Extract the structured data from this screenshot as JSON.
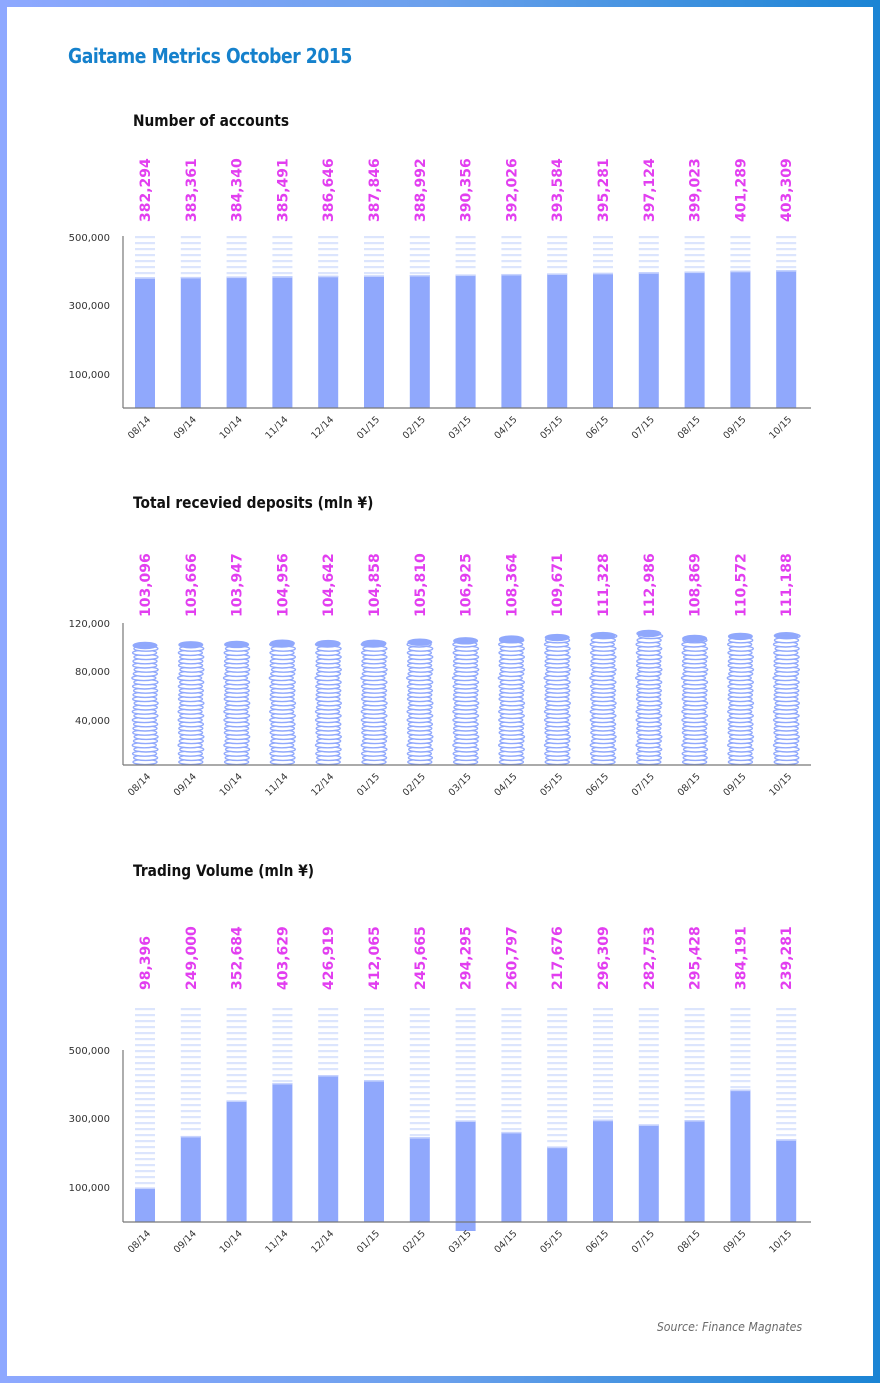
{
  "page": {
    "title": "Gaitame Metrics October 2015",
    "source": "Source: Finance Magnates",
    "colors": {
      "title": "#1581cc",
      "bar": "#90a8fc",
      "bar_ghost": "#dce5fd",
      "value_label": "#e23ef0",
      "axis": "#777777"
    }
  },
  "chart_data": [
    {
      "id": "accounts",
      "type": "bar",
      "style": "striped-bar",
      "title": "Number of accounts",
      "xlabel": "",
      "ylabel": "",
      "categories": [
        "08/14",
        "09/14",
        "10/14",
        "11/14",
        "12/14",
        "01/15",
        "02/15",
        "03/15",
        "04/15",
        "05/15",
        "06/15",
        "07/15",
        "08/15",
        "09/15",
        "10/15"
      ],
      "values": [
        382294,
        383361,
        384340,
        385491,
        386646,
        387846,
        388992,
        390356,
        392026,
        393584,
        395281,
        397124,
        399023,
        401289,
        403309
      ],
      "value_labels": [
        "382,294",
        "383,361",
        "384,340",
        "385,491",
        "386,646",
        "387,846",
        "388,992",
        "390,356",
        "392,026",
        "393,584",
        "395,281",
        "397,124",
        "399,023",
        "401,289",
        "403,309"
      ],
      "yticks": [
        100000,
        300000,
        500000
      ],
      "ytick_labels": [
        "100,000",
        "300,000",
        "500,000"
      ],
      "ylim": [
        0,
        500000
      ],
      "grid": false,
      "legend": "none"
    },
    {
      "id": "deposits",
      "type": "bar",
      "style": "coin-stack",
      "title": "Total recevied deposits (mln ¥)",
      "xlabel": "",
      "ylabel": "",
      "categories": [
        "08/14",
        "09/14",
        "10/14",
        "11/14",
        "12/14",
        "01/15",
        "02/15",
        "03/15",
        "04/15",
        "05/15",
        "06/15",
        "07/15",
        "08/15",
        "09/15",
        "10/15"
      ],
      "values": [
        103096,
        103666,
        103947,
        104956,
        104642,
        104858,
        105810,
        106925,
        108364,
        109671,
        111328,
        112986,
        108869,
        110572,
        111188
      ],
      "value_labels": [
        "103,096",
        "103,666",
        "103,947",
        "104,956",
        "104,642",
        "104,858",
        "105,810",
        "106,925",
        "108,364",
        "109,671",
        "111,328",
        "112,986",
        "108,869",
        "110,572",
        "111,188"
      ],
      "yticks": [
        40000,
        80000,
        120000
      ],
      "ytick_labels": [
        "40,000",
        "80,000",
        "120,000"
      ],
      "ylim": [
        0,
        120000
      ],
      "grid": false,
      "legend": "none"
    },
    {
      "id": "volume",
      "type": "bar",
      "style": "striped-bar",
      "title": "Trading Volume (mln ¥)",
      "xlabel": "",
      "ylabel": "",
      "categories": [
        "08/14",
        "09/14",
        "10/14",
        "11/14",
        "12/14",
        "01/15",
        "02/15",
        "03/15",
        "04/15",
        "05/15",
        "06/15",
        "07/15",
        "08/15",
        "09/15",
        "10/15"
      ],
      "values": [
        98396,
        249000,
        352684,
        403629,
        426919,
        412065,
        245665,
        294295,
        260797,
        217676,
        296309,
        282753,
        295428,
        384191,
        239281
      ],
      "value_labels": [
        "98,396",
        "249,000",
        "352,684",
        "403,629",
        "426,919",
        "412,065",
        "245,665",
        "294,295",
        "260,797",
        "217,676",
        "296,309",
        "282,753",
        "295,428",
        "384,191",
        "239,281"
      ],
      "yticks": [
        100000,
        300000,
        500000
      ],
      "ytick_labels": [
        "100,000",
        "300,000",
        "500,000"
      ],
      "ylim": [
        0,
        500000
      ],
      "grid": false,
      "legend": "none"
    }
  ]
}
